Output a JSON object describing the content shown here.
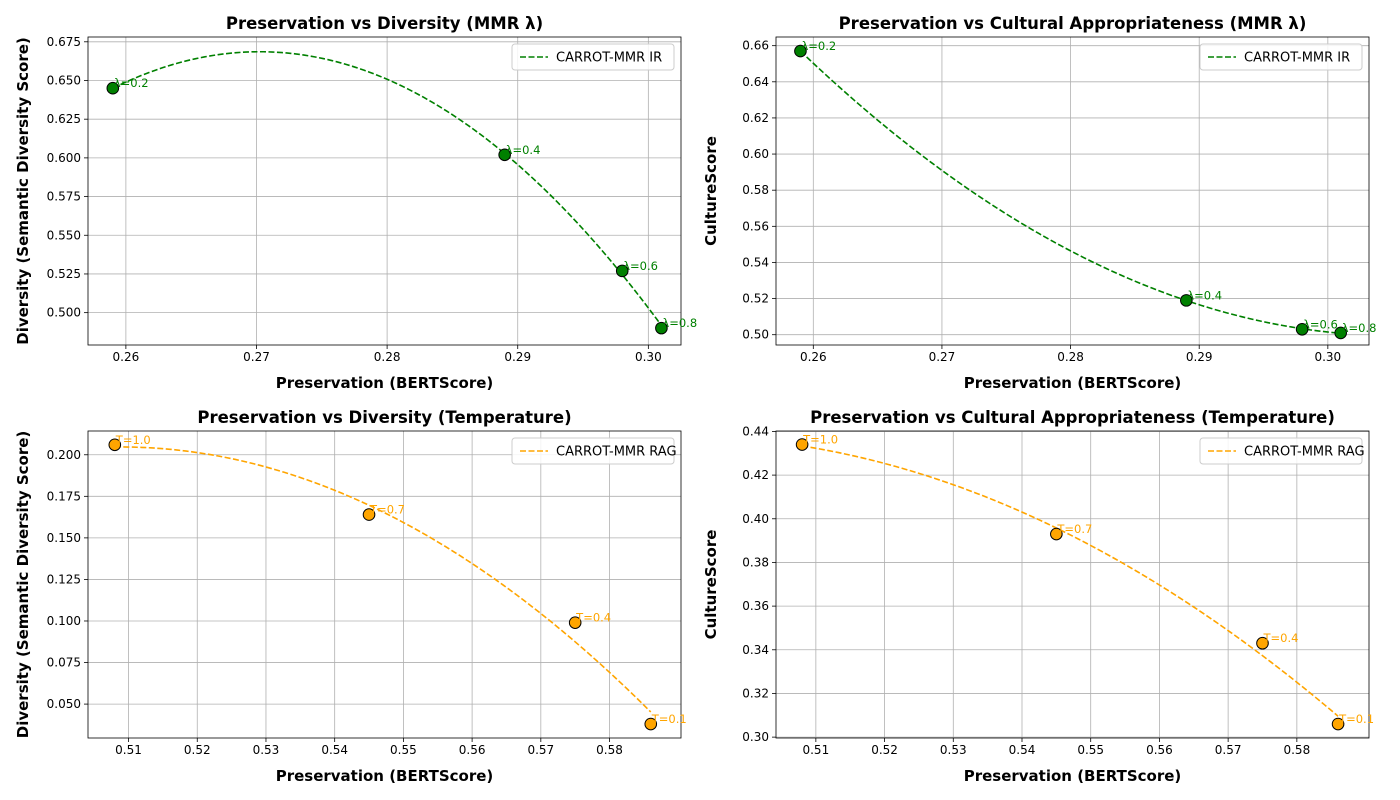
{
  "chart_data": [
    {
      "type": "scatter",
      "title": "Preservation vs Diversity (MMR λ)",
      "xlabel": "Preservation (BERTScore)",
      "ylabel": "Diversity (Semantic Diversity Score)",
      "xlim": [
        0.2571,
        0.3025
      ],
      "ylim": [
        0.4791,
        0.6781
      ],
      "xticks": [
        "0.26",
        "0.27",
        "0.28",
        "0.29",
        "0.30"
      ],
      "yticks": [
        "0.500",
        "0.525",
        "0.550",
        "0.575",
        "0.600",
        "0.625",
        "0.650",
        "0.675"
      ],
      "grid": true,
      "legend_position": "top-right",
      "color": "#008000",
      "series": [
        {
          "name": "CARROT-MMR IR",
          "fit_line": "dashed",
          "points": [
            {
              "x": 0.259,
              "y": 0.645,
              "label": "λ=0.2"
            },
            {
              "x": 0.289,
              "y": 0.602,
              "label": "λ=0.4"
            },
            {
              "x": 0.298,
              "y": 0.527,
              "label": "λ=0.6"
            },
            {
              "x": 0.301,
              "y": 0.49,
              "label": "λ=0.8"
            }
          ]
        }
      ]
    },
    {
      "type": "scatter",
      "title": "Preservation vs Cultural Appropriateness (MMR λ)",
      "xlabel": "Preservation (BERTScore)",
      "ylabel": "CultureScore",
      "xlim": [
        0.2571,
        0.3032
      ],
      "ylim": [
        0.4943,
        0.6648
      ],
      "xticks": [
        "0.26",
        "0.27",
        "0.28",
        "0.29",
        "0.30"
      ],
      "yticks": [
        "0.50",
        "0.52",
        "0.54",
        "0.56",
        "0.58",
        "0.60",
        "0.62",
        "0.64",
        "0.66"
      ],
      "grid": true,
      "legend_position": "top-right",
      "color": "#008000",
      "series": [
        {
          "name": "CARROT-MMR IR",
          "fit_line": "dashed",
          "points": [
            {
              "x": 0.259,
              "y": 0.657,
              "label": "λ=0.2"
            },
            {
              "x": 0.289,
              "y": 0.519,
              "label": "λ=0.4"
            },
            {
              "x": 0.298,
              "y": 0.503,
              "label": "λ=0.6"
            },
            {
              "x": 0.301,
              "y": 0.501,
              "label": "λ=0.8"
            }
          ]
        }
      ]
    },
    {
      "type": "scatter",
      "title": "Preservation vs Diversity (Temperature)",
      "xlabel": "Preservation (BERTScore)",
      "ylabel": "Diversity (Semantic Diversity Score)",
      "xlim": [
        0.5041,
        0.5904
      ],
      "ylim": [
        0.0296,
        0.2143
      ],
      "xticks": [
        "0.51",
        "0.52",
        "0.53",
        "0.54",
        "0.55",
        "0.56",
        "0.57",
        "0.58"
      ],
      "yticks": [
        "0.050",
        "0.075",
        "0.100",
        "0.125",
        "0.150",
        "0.175",
        "0.200"
      ],
      "grid": true,
      "legend_position": "top-right",
      "color": "#ffa500",
      "series": [
        {
          "name": "CARROT-MMR RAG",
          "fit_line": "dashed",
          "points": [
            {
              "x": 0.508,
              "y": 0.206,
              "label": "T=1.0"
            },
            {
              "x": 0.545,
              "y": 0.164,
              "label": "T=0.7"
            },
            {
              "x": 0.575,
              "y": 0.099,
              "label": "T=0.4"
            },
            {
              "x": 0.586,
              "y": 0.038,
              "label": "T=0.1"
            }
          ]
        }
      ]
    },
    {
      "type": "scatter",
      "title": "Preservation vs Cultural Appropriateness (Temperature)",
      "xlabel": "Preservation (BERTScore)",
      "ylabel": "CultureScore",
      "xlim": [
        0.5042,
        0.5905
      ],
      "ylim": [
        0.2996,
        0.4402
      ],
      "xticks": [
        "0.51",
        "0.52",
        "0.53",
        "0.54",
        "0.55",
        "0.56",
        "0.57",
        "0.58"
      ],
      "yticks": [
        "0.30",
        "0.32",
        "0.34",
        "0.36",
        "0.38",
        "0.40",
        "0.42",
        "0.44"
      ],
      "grid": true,
      "legend_position": "top-right",
      "color": "#ffa500",
      "series": [
        {
          "name": "CARROT-MMR RAG",
          "fit_line": "dashed",
          "points": [
            {
              "x": 0.508,
              "y": 0.434,
              "label": "T=1.0"
            },
            {
              "x": 0.545,
              "y": 0.393,
              "label": "T=0.7"
            },
            {
              "x": 0.575,
              "y": 0.343,
              "label": "T=0.4"
            },
            {
              "x": 0.586,
              "y": 0.306,
              "label": "T=0.1"
            }
          ]
        }
      ]
    }
  ]
}
